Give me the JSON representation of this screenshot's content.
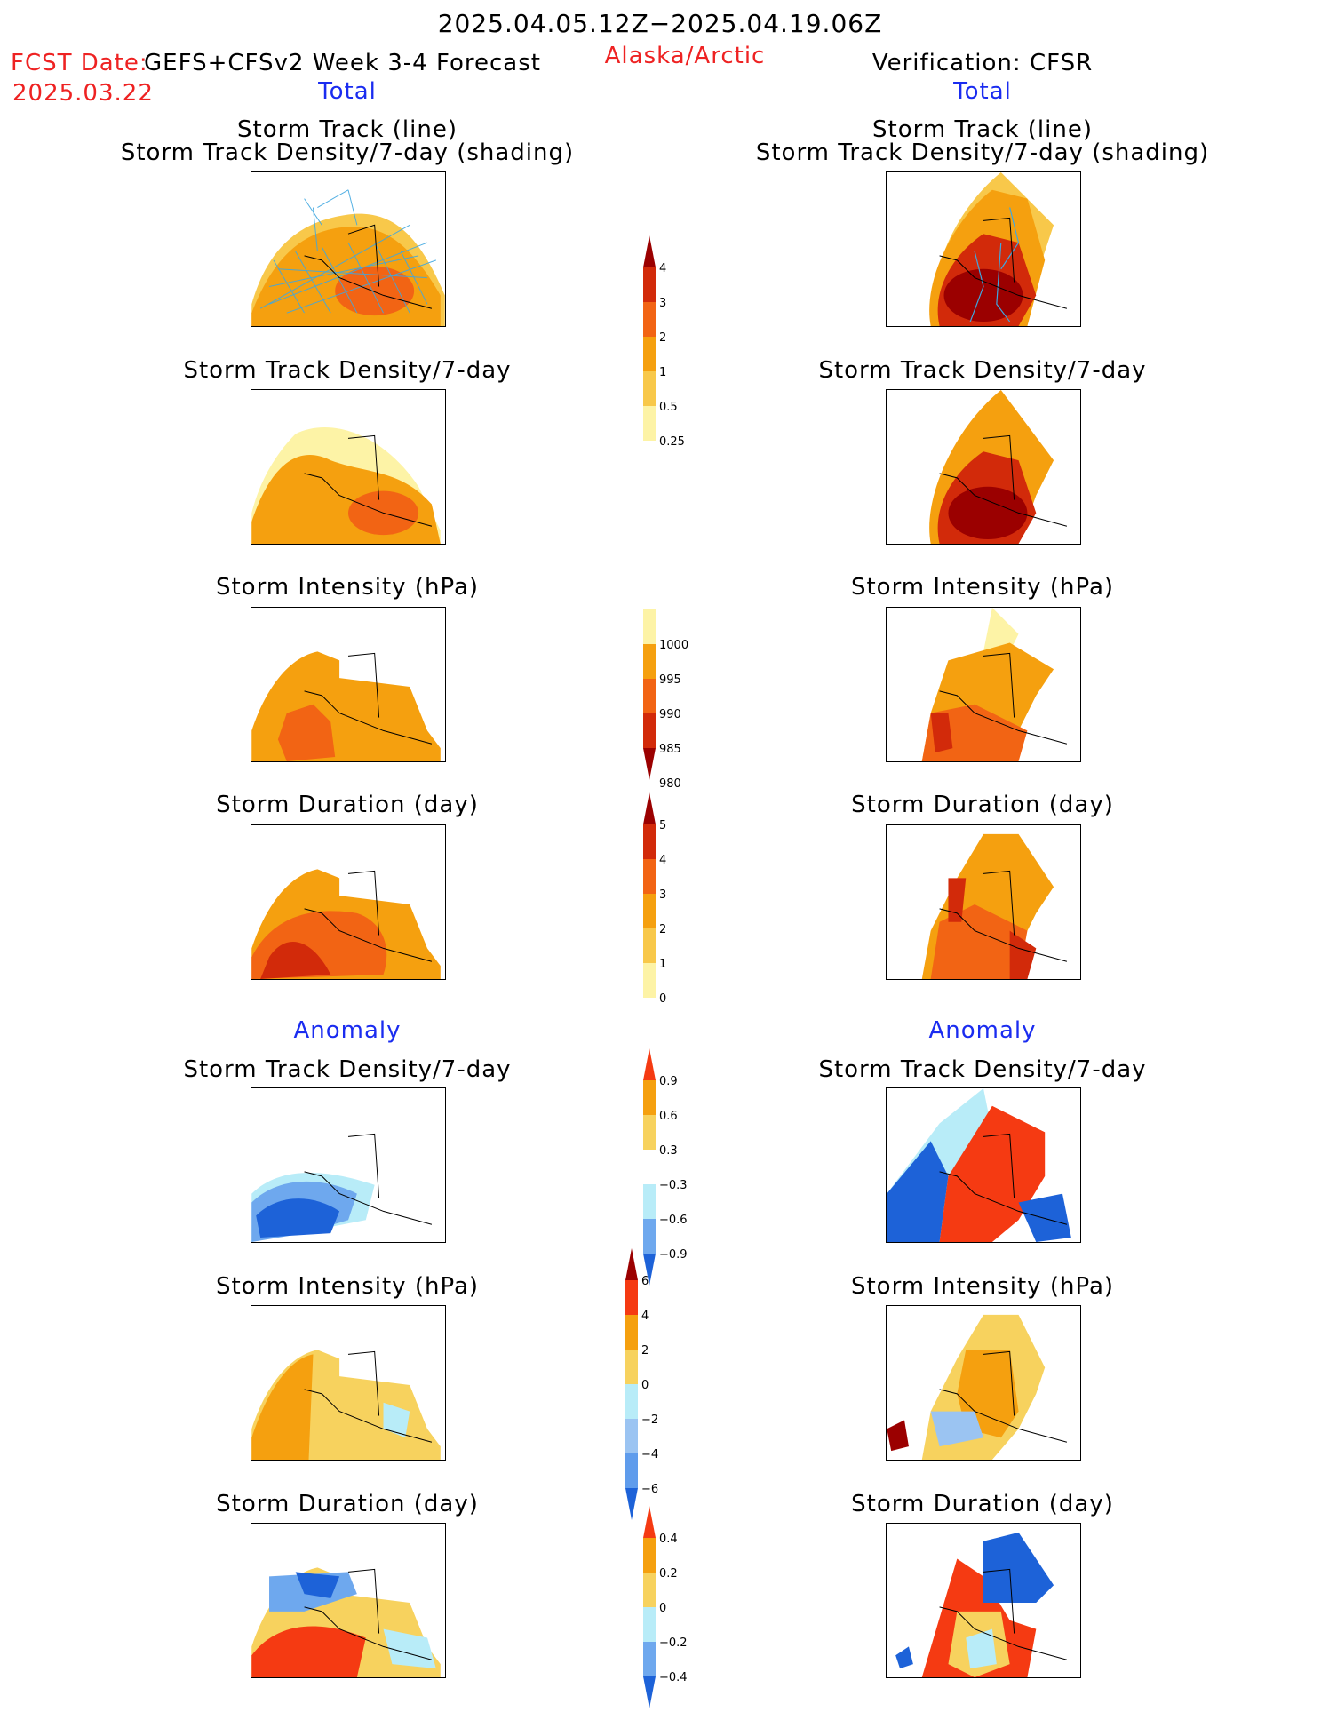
{
  "header": {
    "period": "2025.04.05.12Z−2025.04.19.06Z",
    "fcst_prefix": "FCST Date:",
    "fcst_model": "GEFS+CFSv2 Week 3-4 Forecast",
    "fcst_date": "2025.03.22",
    "region": "Alaska/Arctic",
    "verification": "Verification: CFSR",
    "left_total": "Total",
    "right_total": "Total",
    "left_anomaly": "Anomaly",
    "right_anomaly": "Anomaly"
  },
  "panel_titles": {
    "track_line": "Storm Track (line)",
    "track_shading": "Storm Track Density/7-day (shading)",
    "density": "Storm Track Density/7-day",
    "intensity": "Storm Intensity (hPa)",
    "duration": "Storm Duration (day)"
  },
  "colorbars": {
    "density_total": {
      "labels": [
        "4",
        "3",
        "2",
        "1",
        "0.5",
        "0.25"
      ],
      "colors": [
        "#9b0000",
        "#d22a0a",
        "#f26414",
        "#f5a00f",
        "#f8c84a",
        "#fdf3a6"
      ]
    },
    "intensity_total": {
      "labels": [
        "1000",
        "995",
        "990",
        "985",
        "980"
      ],
      "colors": [
        "#fdf3a6",
        "#f5a00f",
        "#f26414",
        "#d22a0a",
        "#9b0000"
      ]
    },
    "duration_total": {
      "labels": [
        "5",
        "4",
        "3",
        "2",
        "1",
        "0"
      ],
      "colors": [
        "#9b0000",
        "#d22a0a",
        "#f26414",
        "#f5a00f",
        "#f8c84a",
        "#fdf3a6"
      ]
    },
    "density_anom": {
      "labels": [
        "0.9",
        "0.6",
        "0.3",
        "−0.3",
        "−0.6",
        "−0.9"
      ],
      "colors": [
        "#f53a12",
        "#f5a00f",
        "#f7d25e",
        "#ffffff",
        "#b8ecf8",
        "#6ea8ee",
        "#1d62d8"
      ]
    },
    "intensity_anom": {
      "labels": [
        "6",
        "4",
        "2",
        "0",
        "−2",
        "−4",
        "−6"
      ],
      "colors": [
        "#9b0000",
        "#f53a12",
        "#f5a00f",
        "#f7d25e",
        "#b8ecf8",
        "#9bc4f2",
        "#5f9cec",
        "#1d62d8"
      ]
    },
    "duration_anom": {
      "labels": [
        "0.4",
        "0.2",
        "0",
        "−0.2",
        "−0.4"
      ],
      "colors": [
        "#f53a12",
        "#f5a00f",
        "#f7d25e",
        "#b8ecf8",
        "#6ea8ee",
        "#1d62d8"
      ]
    }
  }
}
